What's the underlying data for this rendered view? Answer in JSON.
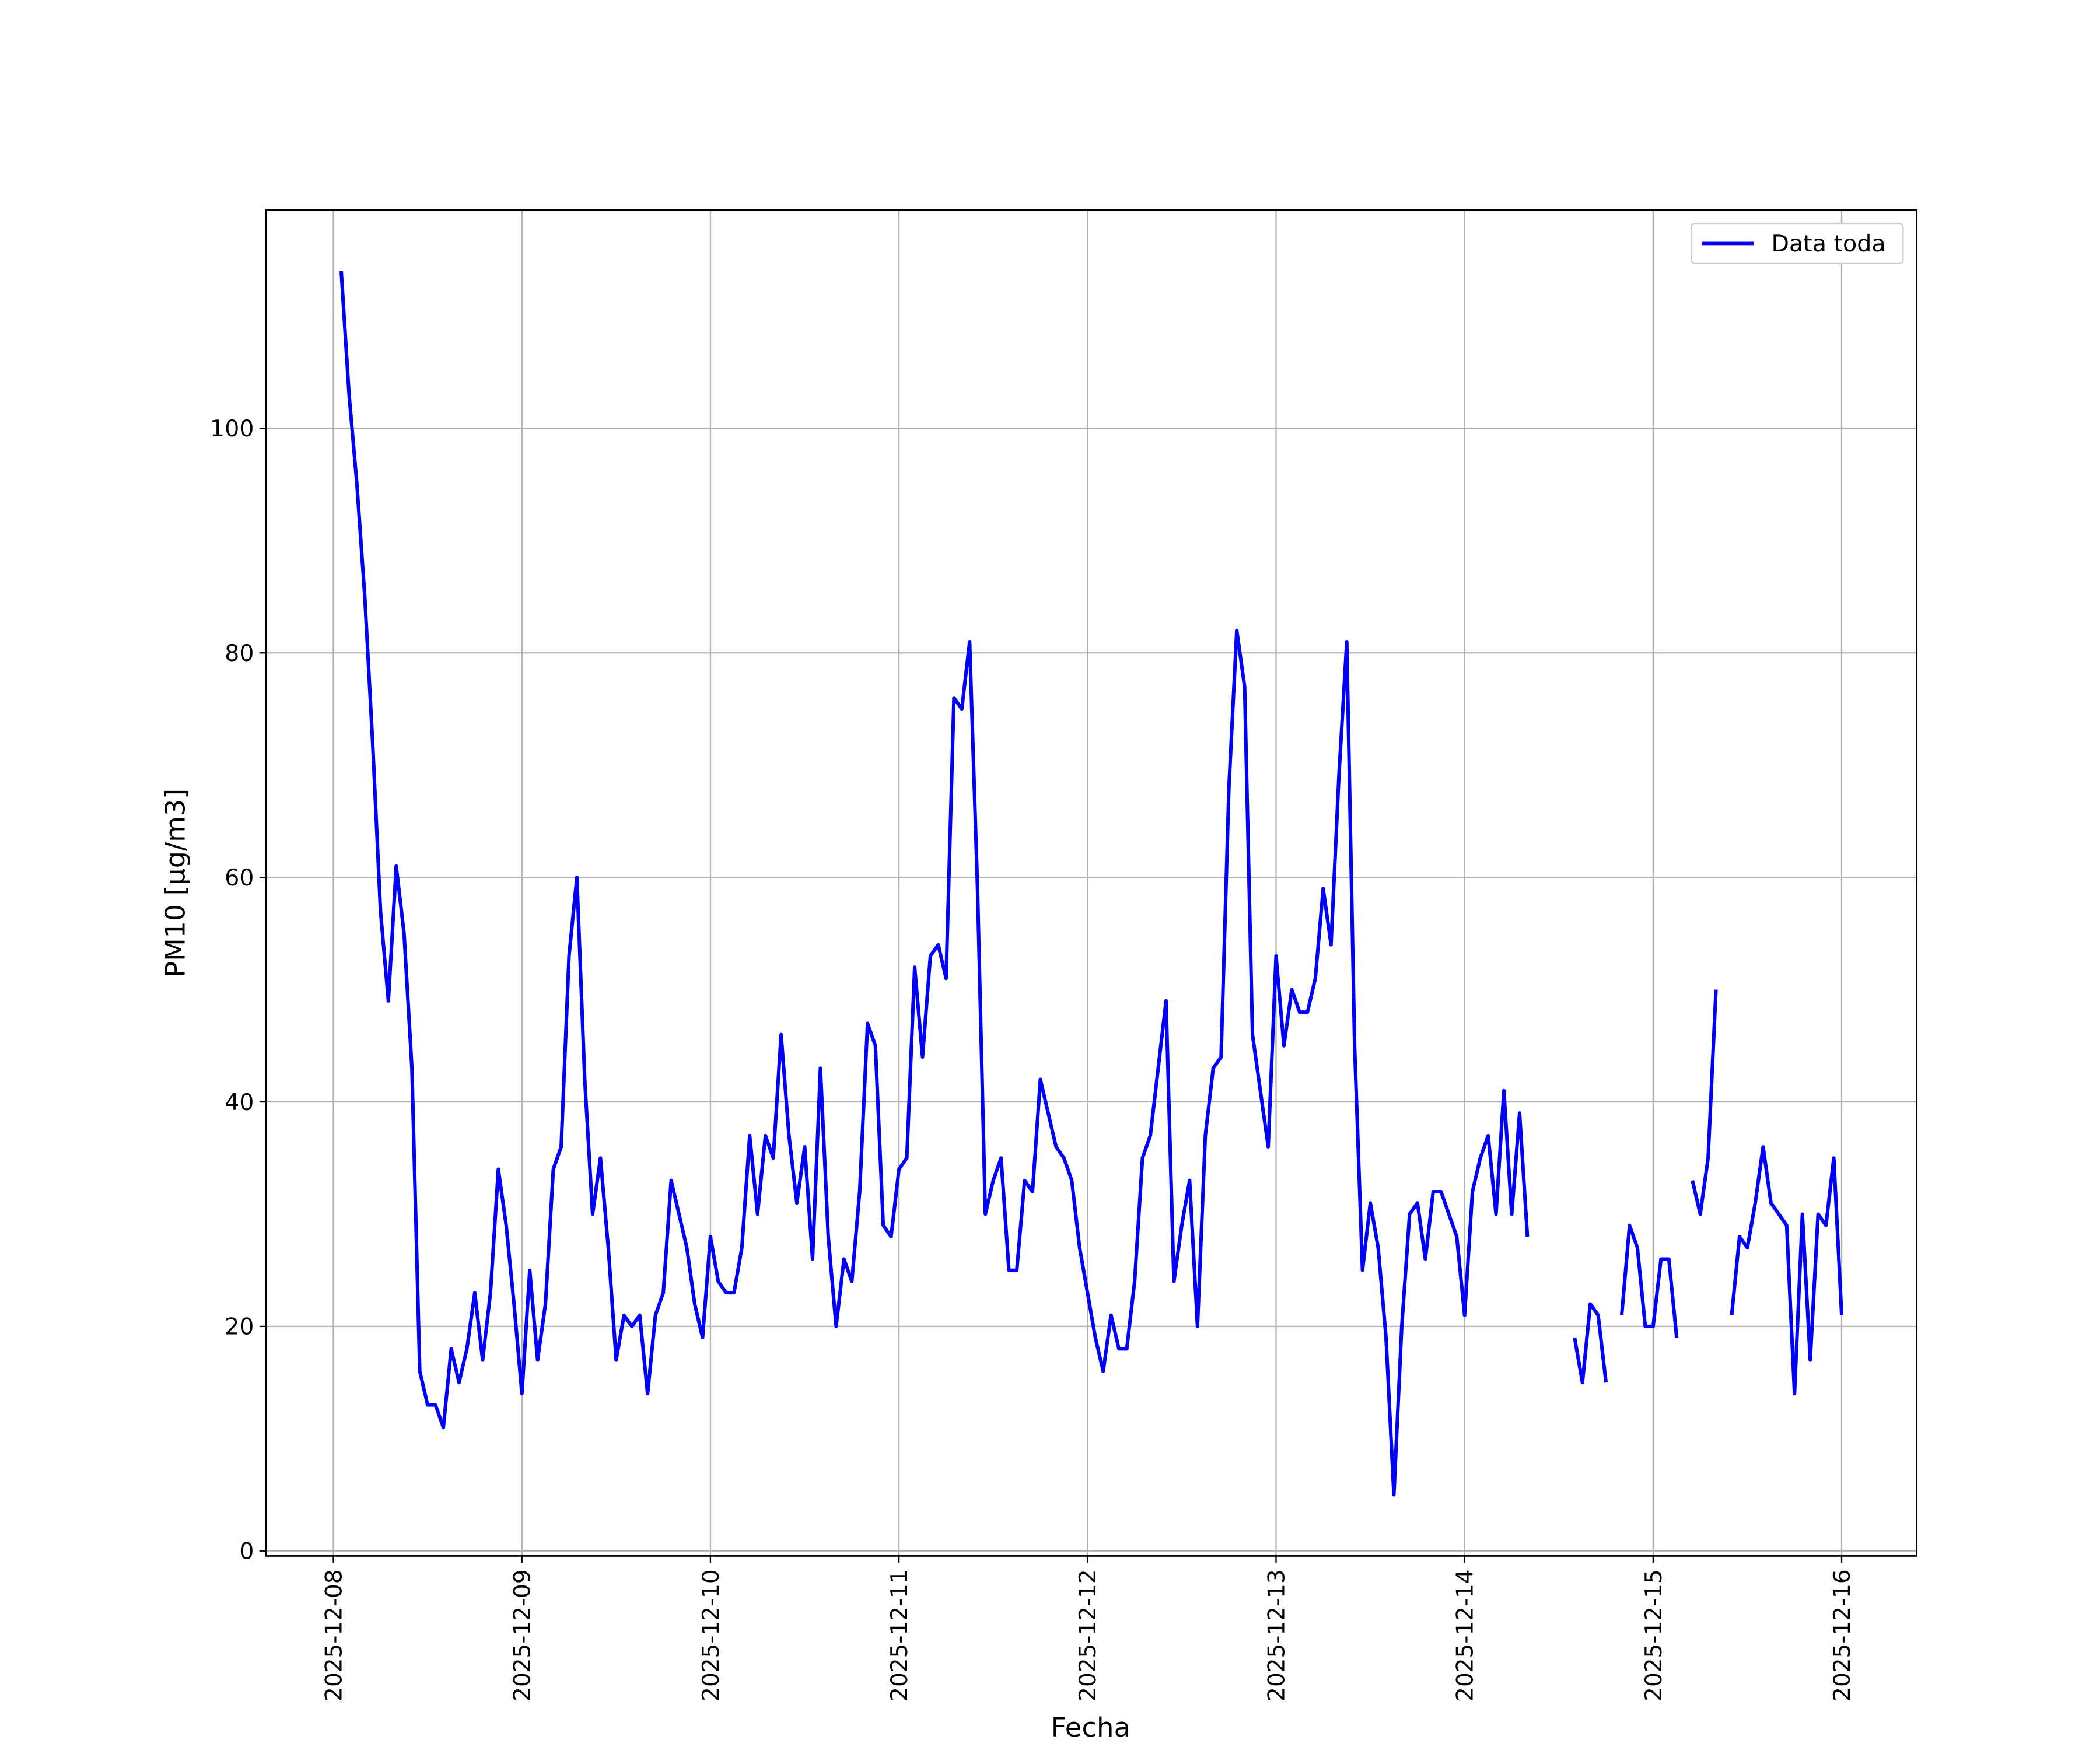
{
  "chart_data": {
    "type": "line",
    "xlabel": "Fecha",
    "ylabel": "PM10 [μg/m3]",
    "x": [
      "2025-12-08 01:00",
      "2025-12-08 02:00",
      "2025-12-08 03:00",
      "2025-12-08 04:00",
      "2025-12-08 05:00",
      "2025-12-08 06:00",
      "2025-12-08 07:00",
      "2025-12-08 08:00",
      "2025-12-08 09:00",
      "2025-12-08 10:00",
      "2025-12-08 11:00",
      "2025-12-08 12:00",
      "2025-12-08 13:00",
      "2025-12-08 14:00",
      "2025-12-08 15:00",
      "2025-12-08 16:00",
      "2025-12-08 17:00",
      "2025-12-08 18:00",
      "2025-12-08 19:00",
      "2025-12-08 20:00",
      "2025-12-08 21:00",
      "2025-12-08 22:00",
      "2025-12-08 23:00",
      "2025-12-09 00:00",
      "2025-12-09 01:00",
      "2025-12-09 02:00",
      "2025-12-09 03:00",
      "2025-12-09 04:00",
      "2025-12-09 05:00",
      "2025-12-09 06:00",
      "2025-12-09 07:00",
      "2025-12-09 08:00",
      "2025-12-09 09:00",
      "2025-12-09 10:00",
      "2025-12-09 11:00",
      "2025-12-09 12:00",
      "2025-12-09 13:00",
      "2025-12-09 14:00",
      "2025-12-09 15:00",
      "2025-12-09 16:00",
      "2025-12-09 17:00",
      "2025-12-09 18:00",
      "2025-12-09 19:00",
      "2025-12-09 20:00",
      "2025-12-09 21:00",
      "2025-12-09 22:00",
      "2025-12-09 23:00",
      "2025-12-10 00:00",
      "2025-12-10 01:00",
      "2025-12-10 02:00",
      "2025-12-10 03:00",
      "2025-12-10 04:00",
      "2025-12-10 05:00",
      "2025-12-10 06:00",
      "2025-12-10 07:00",
      "2025-12-10 08:00",
      "2025-12-10 09:00",
      "2025-12-10 10:00",
      "2025-12-10 11:00",
      "2025-12-10 12:00",
      "2025-12-10 13:00",
      "2025-12-10 14:00",
      "2025-12-10 15:00",
      "2025-12-10 16:00",
      "2025-12-10 17:00",
      "2025-12-10 18:00",
      "2025-12-10 19:00",
      "2025-12-10 20:00",
      "2025-12-10 21:00",
      "2025-12-10 22:00",
      "2025-12-10 23:00",
      "2025-12-11 00:00",
      "2025-12-11 01:00",
      "2025-12-11 02:00",
      "2025-12-11 03:00",
      "2025-12-11 04:00",
      "2025-12-11 05:00",
      "2025-12-11 06:00",
      "2025-12-11 07:00",
      "2025-12-11 08:00",
      "2025-12-11 09:00",
      "2025-12-11 10:00",
      "2025-12-11 11:00",
      "2025-12-11 12:00",
      "2025-12-11 13:00",
      "2025-12-11 14:00",
      "2025-12-11 15:00",
      "2025-12-11 16:00",
      "2025-12-11 17:00",
      "2025-12-11 18:00",
      "2025-12-11 19:00",
      "2025-12-11 20:00",
      "2025-12-11 21:00",
      "2025-12-11 22:00",
      "2025-12-11 23:00",
      "2025-12-12 00:00",
      "2025-12-12 01:00",
      "2025-12-12 02:00",
      "2025-12-12 03:00",
      "2025-12-12 04:00",
      "2025-12-12 05:00",
      "2025-12-12 06:00",
      "2025-12-12 07:00",
      "2025-12-12 08:00",
      "2025-12-12 09:00",
      "2025-12-12 10:00",
      "2025-12-12 11:00",
      "2025-12-12 12:00",
      "2025-12-12 13:00",
      "2025-12-12 14:00",
      "2025-12-12 15:00",
      "2025-12-12 16:00",
      "2025-12-12 17:00",
      "2025-12-12 18:00",
      "2025-12-12 19:00",
      "2025-12-12 20:00",
      "2025-12-12 21:00",
      "2025-12-12 22:00",
      "2025-12-12 23:00",
      "2025-12-13 00:00",
      "2025-12-13 01:00",
      "2025-12-13 02:00",
      "2025-12-13 03:00",
      "2025-12-13 04:00",
      "2025-12-13 05:00",
      "2025-12-13 06:00",
      "2025-12-13 07:00",
      "2025-12-13 08:00",
      "2025-12-13 09:00",
      "2025-12-13 10:00",
      "2025-12-13 11:00",
      "2025-12-13 12:00",
      "2025-12-13 13:00",
      "2025-12-13 14:00",
      "2025-12-13 15:00",
      "2025-12-13 16:00",
      "2025-12-13 17:00",
      "2025-12-13 18:00",
      "2025-12-13 19:00",
      "2025-12-13 20:00",
      "2025-12-13 21:00",
      "2025-12-13 22:00",
      "2025-12-13 23:00",
      "2025-12-14 00:00",
      "2025-12-14 01:00",
      "2025-12-14 02:00",
      "2025-12-14 03:00",
      "2025-12-14 04:00",
      "2025-12-14 05:00",
      "2025-12-14 06:00",
      "2025-12-14 07:00",
      "2025-12-14 08:00",
      "2025-12-14 09:00",
      "2025-12-14 10:00",
      "2025-12-14 11:00",
      "2025-12-14 12:00",
      "2025-12-14 13:00",
      "2025-12-14 14:00",
      "2025-12-14 15:00",
      "2025-12-14 16:00",
      "2025-12-14 17:00",
      "2025-12-14 18:00",
      "2025-12-14 19:00",
      "2025-12-14 20:00",
      "2025-12-14 21:00",
      "2025-12-14 22:00",
      "2025-12-14 23:00",
      "2025-12-15 00:00",
      "2025-12-15 01:00",
      "2025-12-15 02:00",
      "2025-12-15 03:00",
      "2025-12-15 04:00",
      "2025-12-15 05:00",
      "2025-12-15 06:00",
      "2025-12-15 07:00",
      "2025-12-15 08:00",
      "2025-12-15 09:00",
      "2025-12-15 10:00",
      "2025-12-15 11:00",
      "2025-12-15 12:00",
      "2025-12-15 13:00",
      "2025-12-15 14:00",
      "2025-12-15 15:00",
      "2025-12-15 16:00",
      "2025-12-15 17:00",
      "2025-12-15 18:00",
      "2025-12-15 19:00",
      "2025-12-15 20:00",
      "2025-12-15 21:00",
      "2025-12-15 22:00",
      "2025-12-15 23:00",
      "2025-12-16 00:00"
    ],
    "series": [
      {
        "name": "Data toda",
        "color": "#0000ff",
        "values": [
          114,
          103,
          95,
          85,
          72,
          57,
          49,
          61,
          55,
          43,
          16,
          13,
          13,
          11,
          18,
          15,
          18,
          23,
          17,
          23,
          34,
          29,
          22,
          14,
          25,
          17,
          22,
          34,
          36,
          53,
          60,
          42,
          30,
          35,
          27,
          17,
          21,
          20,
          21,
          14,
          21,
          23,
          33,
          30,
          27,
          22,
          19,
          28,
          24,
          23,
          23,
          27,
          37,
          30,
          37,
          35,
          46,
          37,
          31,
          36,
          26,
          43,
          28,
          20,
          26,
          24,
          32,
          47,
          45,
          29,
          28,
          34,
          35,
          52,
          44,
          53,
          54,
          51,
          76,
          75,
          81,
          59,
          30,
          33,
          35,
          25,
          25,
          33,
          32,
          42,
          39,
          36,
          35,
          33,
          27,
          23,
          19,
          16,
          21,
          18,
          18,
          24,
          35,
          37,
          43,
          49,
          24,
          29,
          33,
          20,
          37,
          43,
          44,
          68,
          82,
          77,
          46,
          41,
          36,
          53,
          45,
          50,
          48,
          48,
          51,
          59,
          54,
          69,
          81,
          45,
          25,
          31,
          27,
          19,
          5,
          20,
          30,
          31,
          26,
          32,
          32,
          30,
          28,
          21,
          32,
          35,
          37,
          30,
          41,
          30,
          39,
          28,
          null,
          null,
          null,
          null,
          null,
          19,
          15,
          22,
          21,
          15,
          null,
          21,
          29,
          27,
          20,
          20,
          26,
          26,
          19,
          null,
          33,
          30,
          35,
          50,
          null,
          21,
          28,
          27,
          31,
          36,
          31,
          30,
          29,
          14,
          30,
          17,
          30,
          29,
          35,
          21
        ]
      }
    ],
    "xlim": [
      "2025-12-07 15:27",
      "2025-12-16 09:33"
    ],
    "xticks": [
      "2025-12-08",
      "2025-12-09",
      "2025-12-10",
      "2025-12-11",
      "2025-12-12",
      "2025-12-13",
      "2025-12-14",
      "2025-12-15",
      "2025-12-16"
    ],
    "ylim": [
      -0.45,
      119.45
    ],
    "yticks": [
      0,
      20,
      40,
      60,
      80,
      100
    ],
    "grid": true,
    "legend": "upper right"
  }
}
